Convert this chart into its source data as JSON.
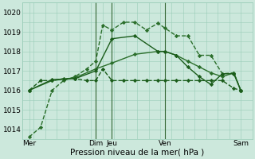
{
  "background_color": "#cce8dc",
  "grid_color": "#99ccb8",
  "xlabel": "Pression niveau de la mer( hPa )",
  "ylim": [
    1013.5,
    1020.5
  ],
  "yticks": [
    1014,
    1015,
    1016,
    1017,
    1018,
    1019,
    1020
  ],
  "xlim": [
    0,
    10
  ],
  "xtick_positions": [
    0.3,
    3.2,
    3.9,
    6.2,
    9.5
  ],
  "xtick_labels": [
    "Mer",
    "Dim",
    "Jeu",
    "Ven",
    "Sam"
  ],
  "vlines_x": [
    3.2,
    3.9,
    6.2
  ],
  "vlines_color": "#336633",
  "vlines_linewidth": 0.8,
  "series": [
    {
      "x": [
        0.3,
        0.8,
        1.3,
        1.8,
        2.3,
        2.8,
        3.2,
        3.5,
        3.9,
        4.4,
        4.9,
        5.4,
        5.9,
        6.2,
        6.7,
        7.2,
        7.7,
        8.2,
        8.7,
        9.2,
        9.5
      ],
      "y": [
        1013.6,
        1014.1,
        1016.0,
        1016.5,
        1016.7,
        1017.1,
        1017.5,
        1019.35,
        1019.1,
        1019.5,
        1019.5,
        1019.1,
        1019.45,
        1019.2,
        1018.8,
        1018.8,
        1017.8,
        1017.8,
        1016.85,
        1016.9,
        1016.0
      ],
      "color": "#2a6e2a",
      "marker": "D",
      "markersize": 2.2,
      "linewidth": 1.0,
      "linestyle": "--"
    },
    {
      "x": [
        0.3,
        0.8,
        1.3,
        1.8,
        2.3,
        2.8,
        3.2,
        3.5,
        3.9,
        4.4,
        4.9,
        5.4,
        5.9,
        6.2,
        6.7,
        7.2,
        7.7,
        8.2,
        8.7,
        9.2,
        9.5
      ],
      "y": [
        1016.0,
        1016.5,
        1016.5,
        1016.6,
        1016.6,
        1016.5,
        1016.5,
        1017.1,
        1016.5,
        1016.5,
        1016.5,
        1016.5,
        1016.5,
        1016.5,
        1016.5,
        1016.5,
        1016.5,
        1016.5,
        1016.5,
        1016.1,
        1016.0
      ],
      "color": "#1a5c1a",
      "marker": "D",
      "markersize": 2.2,
      "linewidth": 1.0,
      "linestyle": "--"
    },
    {
      "x": [
        0.3,
        1.3,
        2.3,
        3.2,
        3.9,
        4.9,
        5.9,
        6.2,
        6.7,
        7.2,
        7.7,
        8.2,
        8.7,
        9.2,
        9.5
      ],
      "y": [
        1016.0,
        1016.5,
        1016.65,
        1017.1,
        1017.4,
        1017.85,
        1018.0,
        1018.0,
        1017.8,
        1017.5,
        1017.2,
        1016.9,
        1016.7,
        1016.9,
        1016.0
      ],
      "color": "#2a6e2a",
      "marker": "D",
      "markersize": 2.2,
      "linewidth": 1.0,
      "linestyle": "-"
    },
    {
      "x": [
        0.3,
        1.3,
        2.3,
        3.2,
        3.9,
        4.9,
        5.9,
        6.2,
        6.7,
        7.2,
        7.7,
        8.2,
        8.7,
        9.2,
        9.5
      ],
      "y": [
        1016.0,
        1016.55,
        1016.6,
        1017.0,
        1018.65,
        1018.8,
        1018.0,
        1018.0,
        1017.8,
        1017.2,
        1016.7,
        1016.3,
        1016.85,
        1016.85,
        1016.0
      ],
      "color": "#1a5c1a",
      "marker": "D",
      "markersize": 2.2,
      "linewidth": 1.0,
      "linestyle": "-"
    }
  ],
  "tick_fontsize": 6.5,
  "xlabel_fontsize": 7.5
}
